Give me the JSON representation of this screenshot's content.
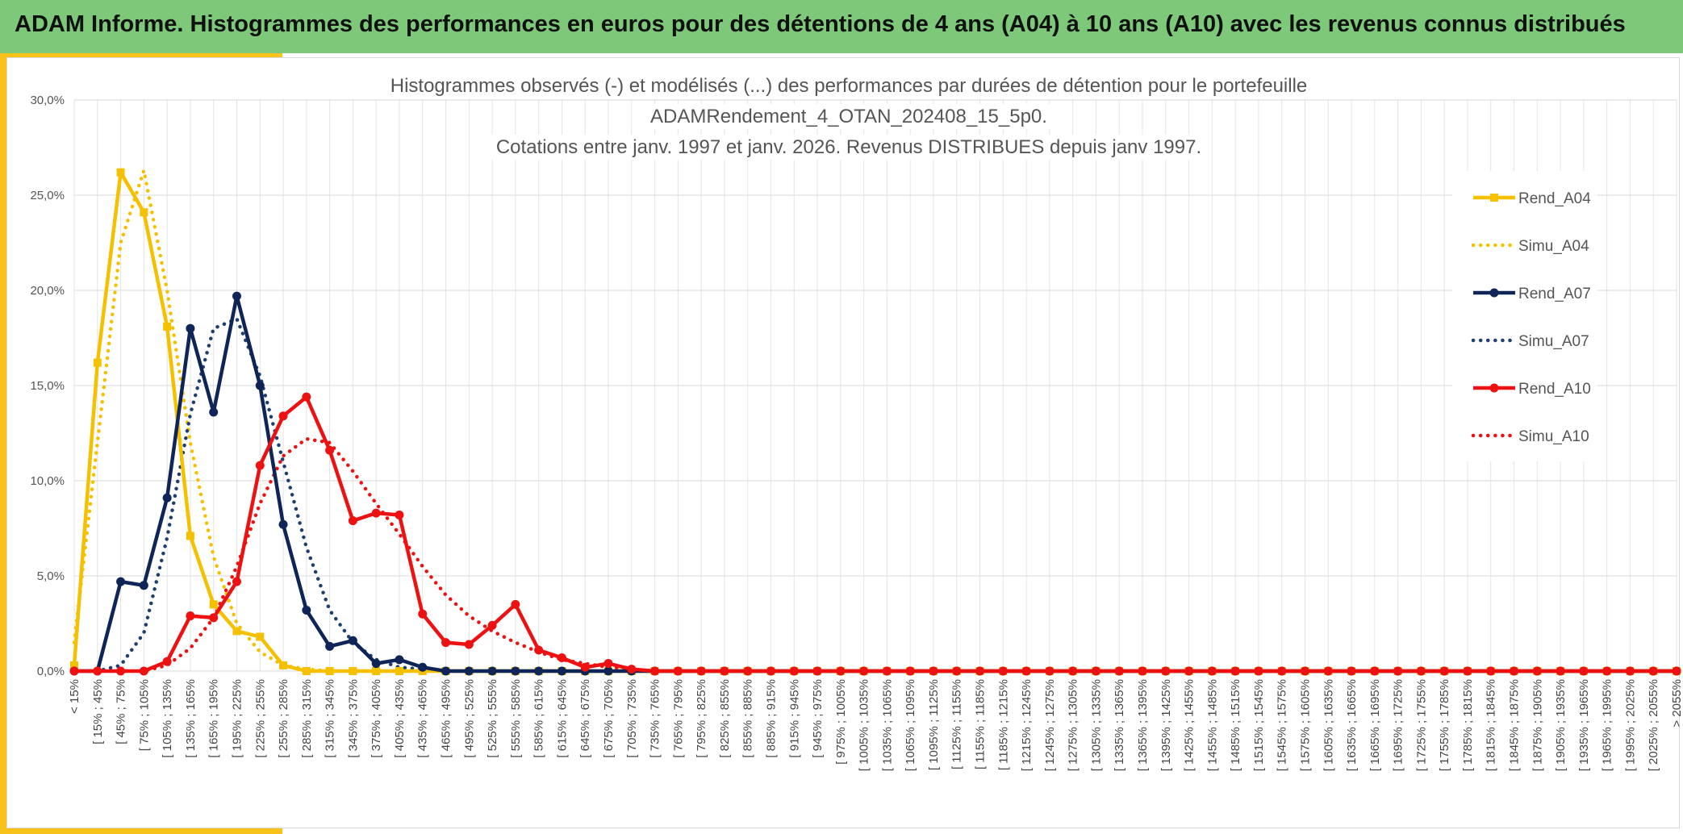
{
  "header": {
    "title": "ADAM Informe. Histogrammes des performances en euros pour des détentions de 4 ans (A04) à 10 ans (A10) avec les revenus connus distribués"
  },
  "chart_data": {
    "type": "line",
    "title_lines": [
      "Histogrammes observés (-) et modélisés (...) des performances par durées de détention pour le portefeuille",
      "ADAMRendement_4_OTAN_202408_15_5p0.",
      "Cotations entre janv. 1997 et janv. 2026. Revenus DISTRIBUES depuis janv 1997."
    ],
    "y_ticks": [
      "0,0%",
      "5,0%",
      "10,0%",
      "15,0%",
      "20,0%",
      "25,0%",
      "30,0%"
    ],
    "ylim": [
      0,
      30
    ],
    "grid": true,
    "legend_position": "right",
    "categories": [
      "< 15%",
      "[ 15% ; 45%",
      "[ 45% ; 75%",
      "[ 75% ; 105%",
      "[ 105% ; 135%",
      "[ 135% ; 165%",
      "[ 165% ; 195%",
      "[ 195% ; 225%",
      "[ 225% ; 255%",
      "[ 255% ; 285%",
      "[ 285% ; 315%",
      "[ 315% ; 345%",
      "[ 345% ; 375%",
      "[ 375% ; 405%",
      "[ 405% ; 435%",
      "[ 435% ; 465%",
      "[ 465% ; 495%",
      "[ 495% ; 525%",
      "[ 525% ; 555%",
      "[ 555% ; 585%",
      "[ 585% ; 615%",
      "[ 615% ; 645%",
      "[ 645% ; 675%",
      "[ 675% ; 705%",
      "[ 705% ; 735%",
      "[ 735% ; 765%",
      "[ 765% ; 795%",
      "[ 795% ; 825%",
      "[ 825% ; 855%",
      "[ 855% ; 885%",
      "[ 885% ; 915%",
      "[ 915% ; 945%",
      "[ 945% ; 975%",
      "[ 975% ; 1005%",
      "[ 1005% ; 1035%",
      "[ 1035% ; 1065%",
      "[ 1065% ; 1095%",
      "[ 1095% ; 1125%",
      "[ 1125% ; 1155%",
      "[ 1155% ; 1185%",
      "[ 1185% ; 1215%",
      "[ 1215% ; 1245%",
      "[ 1245% ; 1275%",
      "[ 1275% ; 1305%",
      "[ 1305% ; 1335%",
      "[ 1335% ; 1365%",
      "[ 1365% ; 1395%",
      "[ 1395% ; 1425%",
      "[ 1425% ; 1455%",
      "[ 1455% ; 1485%",
      "[ 1485% ; 1515%",
      "[ 1515% ; 1545%",
      "[ 1545% ; 1575%",
      "[ 1575% ; 1605%",
      "[ 1605% ; 1635%",
      "[ 1635% ; 1665%",
      "[ 1665% ; 1695%",
      "[ 1695% ; 1725%",
      "[ 1725% ; 1755%",
      "[ 1755% ; 1785%",
      "[ 1785% ; 1815%",
      "[ 1815% ; 1845%",
      "[ 1845% ; 1875%",
      "[ 1875% ; 1905%",
      "[ 1905% ; 1935%",
      "[ 1935% ; 1965%",
      "[ 1965% ; 1995%",
      "[ 1995% ; 2025%",
      "[ 2025% ; 2055%",
      "> 2055%"
    ],
    "series": [
      {
        "name": "Rend_A04",
        "color": "#f5c000",
        "dash": "solid",
        "marker": "square",
        "values": [
          0.3,
          16.2,
          26.2,
          24.1,
          18.1,
          7.1,
          3.5,
          2.1,
          1.8,
          0.3,
          0.0,
          0.0,
          0.0,
          0.0,
          0.0,
          0.0,
          0.0,
          0.0,
          0.0,
          0.0,
          0.0,
          0.0,
          0.0,
          0.0,
          0.0,
          0.0,
          0.0,
          0.0,
          0.0,
          0.0,
          0.0,
          0.0,
          0.0,
          0.0,
          0.0,
          0.0,
          0.0,
          0.0,
          0.0,
          0.0,
          0.0,
          0.0,
          0.0,
          0.0,
          0.0,
          0.0,
          0.0,
          0.0,
          0.0,
          0.0,
          0.0,
          0.0,
          0.0,
          0.0,
          0.0,
          0.0,
          0.0,
          0.0,
          0.0,
          0.0,
          0.0,
          0.0,
          0.0,
          0.0,
          0.0,
          0.0,
          0.0,
          0.0,
          0.0,
          0.0
        ]
      },
      {
        "name": "Simu_A04",
        "color": "#f5c000",
        "dash": "dotted",
        "marker": "none",
        "values": [
          1.5,
          12.0,
          22.5,
          26.3,
          20.0,
          12.0,
          6.0,
          2.5,
          1.0,
          0.3,
          0.1,
          0.0,
          0.0,
          0.0,
          0.0,
          0.0,
          0.0,
          0.0,
          0.0,
          0.0,
          0.0,
          0.0,
          0.0,
          0.0,
          0.0,
          0.0,
          0.0,
          0.0,
          0.0,
          0.0,
          0.0,
          0.0,
          0.0,
          0.0,
          0.0,
          0.0,
          0.0,
          0.0,
          0.0,
          0.0,
          0.0,
          0.0,
          0.0,
          0.0,
          0.0,
          0.0,
          0.0,
          0.0,
          0.0,
          0.0,
          0.0,
          0.0,
          0.0,
          0.0,
          0.0,
          0.0,
          0.0,
          0.0,
          0.0,
          0.0,
          0.0,
          0.0,
          0.0,
          0.0,
          0.0,
          0.0,
          0.0,
          0.0,
          0.0,
          0.0
        ]
      },
      {
        "name": "Rend_A07",
        "color": "#0f2557",
        "dash": "solid",
        "marker": "circle",
        "values": [
          0.0,
          0.0,
          4.7,
          4.5,
          9.1,
          18.0,
          13.6,
          19.7,
          15.0,
          7.7,
          3.2,
          1.3,
          1.6,
          0.4,
          0.6,
          0.2,
          0.0,
          0.0,
          0.0,
          0.0,
          0.0,
          0.0,
          0.0,
          0.0,
          0.0,
          0.0,
          0.0,
          0.0,
          0.0,
          0.0,
          0.0,
          0.0,
          0.0,
          0.0,
          0.0,
          0.0,
          0.0,
          0.0,
          0.0,
          0.0,
          0.0,
          0.0,
          0.0,
          0.0,
          0.0,
          0.0,
          0.0,
          0.0,
          0.0,
          0.0,
          0.0,
          0.0,
          0.0,
          0.0,
          0.0,
          0.0,
          0.0,
          0.0,
          0.0,
          0.0,
          0.0,
          0.0,
          0.0,
          0.0,
          0.0,
          0.0,
          0.0,
          0.0,
          0.0,
          0.0
        ]
      },
      {
        "name": "Simu_A07",
        "color": "#1f3f6e",
        "dash": "dotted",
        "marker": "none",
        "values": [
          0.0,
          0.0,
          0.3,
          2.0,
          7.0,
          13.5,
          18.0,
          18.5,
          15.5,
          11.0,
          6.5,
          3.2,
          1.5,
          0.6,
          0.2,
          0.1,
          0.0,
          0.0,
          0.0,
          0.0,
          0.0,
          0.0,
          0.0,
          0.0,
          0.0,
          0.0,
          0.0,
          0.0,
          0.0,
          0.0,
          0.0,
          0.0,
          0.0,
          0.0,
          0.0,
          0.0,
          0.0,
          0.0,
          0.0,
          0.0,
          0.0,
          0.0,
          0.0,
          0.0,
          0.0,
          0.0,
          0.0,
          0.0,
          0.0,
          0.0,
          0.0,
          0.0,
          0.0,
          0.0,
          0.0,
          0.0,
          0.0,
          0.0,
          0.0,
          0.0,
          0.0,
          0.0,
          0.0,
          0.0,
          0.0,
          0.0,
          0.0,
          0.0,
          0.0,
          0.0
        ]
      },
      {
        "name": "Rend_A10",
        "color": "#ee1111",
        "dash": "solid",
        "marker": "circle",
        "values": [
          0.0,
          0.0,
          0.0,
          0.0,
          0.5,
          2.9,
          2.8,
          4.7,
          10.8,
          13.4,
          14.4,
          11.6,
          7.9,
          8.3,
          8.2,
          3.0,
          1.5,
          1.4,
          2.4,
          3.5,
          1.1,
          0.7,
          0.2,
          0.4,
          0.1,
          0.0,
          0.0,
          0.0,
          0.0,
          0.0,
          0.0,
          0.0,
          0.0,
          0.0,
          0.0,
          0.0,
          0.0,
          0.0,
          0.0,
          0.0,
          0.0,
          0.0,
          0.0,
          0.0,
          0.0,
          0.0,
          0.0,
          0.0,
          0.0,
          0.0,
          0.0,
          0.0,
          0.0,
          0.0,
          0.0,
          0.0,
          0.0,
          0.0,
          0.0,
          0.0,
          0.0,
          0.0,
          0.0,
          0.0,
          0.0,
          0.0,
          0.0,
          0.0,
          0.0,
          0.0
        ]
      },
      {
        "name": "Simu_A10",
        "color": "#ee1111",
        "dash": "dotted",
        "marker": "none",
        "values": [
          0.0,
          0.0,
          0.0,
          0.0,
          0.3,
          1.2,
          2.8,
          5.5,
          8.8,
          11.3,
          12.2,
          12.0,
          10.5,
          8.8,
          7.2,
          5.5,
          4.0,
          2.9,
          2.1,
          1.5,
          1.0,
          0.6,
          0.4,
          0.2,
          0.1,
          0.0,
          0.0,
          0.0,
          0.0,
          0.0,
          0.0,
          0.0,
          0.0,
          0.0,
          0.0,
          0.0,
          0.0,
          0.0,
          0.0,
          0.0,
          0.0,
          0.0,
          0.0,
          0.0,
          0.0,
          0.0,
          0.0,
          0.0,
          0.0,
          0.0,
          0.0,
          0.0,
          0.0,
          0.0,
          0.0,
          0.0,
          0.0,
          0.0,
          0.0,
          0.0,
          0.0,
          0.0,
          0.0,
          0.0,
          0.0,
          0.0,
          0.0,
          0.0,
          0.0,
          0.0
        ]
      }
    ]
  }
}
